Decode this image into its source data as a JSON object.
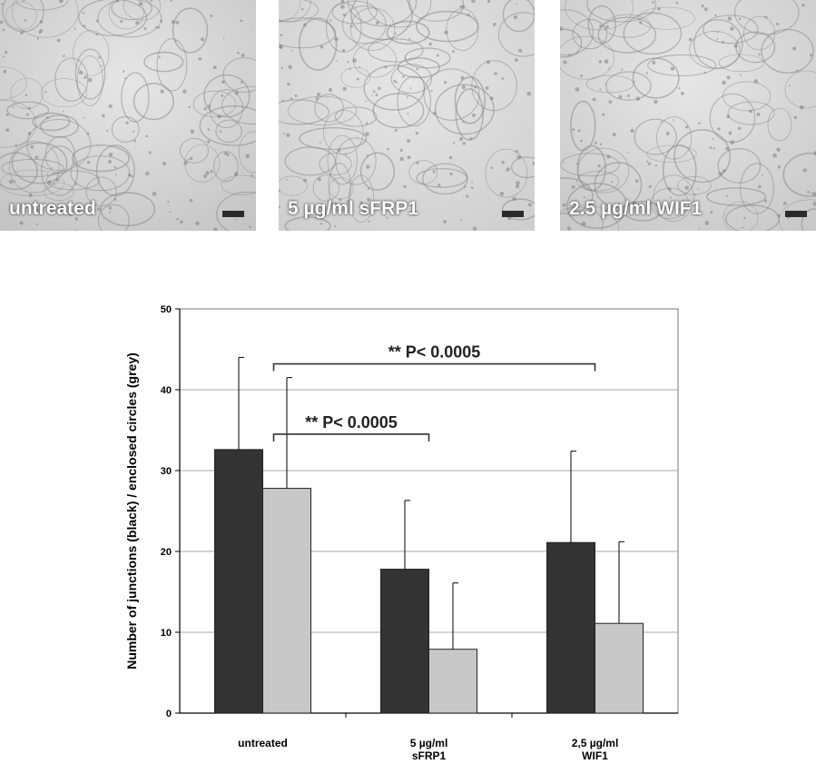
{
  "panels": [
    {
      "label": "untreated",
      "tone": "#c4c4c4"
    },
    {
      "label": "5 µg/ml sFRP1",
      "tone": "#cecece"
    },
    {
      "label": "2.5 µg/ml WIF1",
      "tone": "#c8c8c8"
    }
  ],
  "chart_data": {
    "type": "bar",
    "ylabel": "Number of junctions (black) / enclosed circles (grey)",
    "ylim": [
      0,
      50
    ],
    "yticks": [
      "0",
      "10",
      "20",
      "30",
      "40",
      "50"
    ],
    "categories": [
      {
        "line1": "untreated",
        "line2": ""
      },
      {
        "line1": "5 µg/ml",
        "line2": "sFRP1"
      },
      {
        "line1": "2,5 µg/ml",
        "line2": "WIF1"
      }
    ],
    "series": [
      {
        "color": "#333333",
        "values": [
          32.6,
          17.8,
          21.1
        ],
        "errors": [
          11.4,
          8.5,
          11.3
        ]
      },
      {
        "color": "#c8c8c8",
        "values": [
          27.8,
          7.9,
          11.1
        ],
        "errors": [
          13.7,
          8.2,
          10.1
        ]
      }
    ],
    "grid": true,
    "significance": [
      {
        "from": 0,
        "to": 1,
        "label": "**  P< 0.0005",
        "y": 34.5
      },
      {
        "from": 0,
        "to": 2,
        "label": "**  P< 0.0005",
        "y": 43.2
      }
    ]
  }
}
